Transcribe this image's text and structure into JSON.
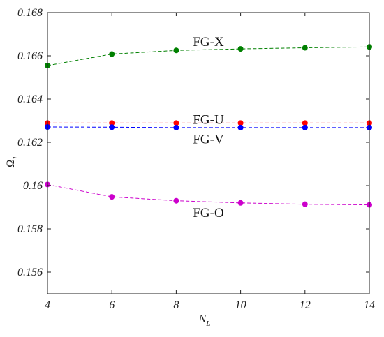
{
  "chart_data": {
    "type": "line",
    "xlabel": "N",
    "xlabel_sub": "L",
    "ylabel": "Ω",
    "ylabel_sub": "1",
    "xlim": [
      4,
      14
    ],
    "ylim": [
      0.155,
      0.168
    ],
    "xticks": [
      "4",
      "6",
      "8",
      "10",
      "12",
      "14"
    ],
    "yticks": [
      "0.156",
      "0.158",
      "0.16",
      "0.162",
      "0.164",
      "0.166",
      "0.168"
    ],
    "grid": false,
    "x": [
      4,
      6,
      8,
      10,
      12,
      14
    ],
    "series": [
      {
        "name": "FG-X",
        "color": "#008000",
        "values": [
          0.16555,
          0.16608,
          0.16625,
          0.16632,
          0.16637,
          0.16641
        ]
      },
      {
        "name": "FG-U",
        "color": "#ff0000",
        "values": [
          0.16289,
          0.16289,
          0.16289,
          0.16289,
          0.16289,
          0.16289
        ]
      },
      {
        "name": "FG-V",
        "color": "#0000ff",
        "values": [
          0.16271,
          0.1627,
          0.16268,
          0.16268,
          0.16268,
          0.16268
        ]
      },
      {
        "name": "FG-O",
        "color": "#cc00cc",
        "values": [
          0.16005,
          0.15948,
          0.1593,
          0.1592,
          0.15914,
          0.15911
        ]
      }
    ]
  }
}
